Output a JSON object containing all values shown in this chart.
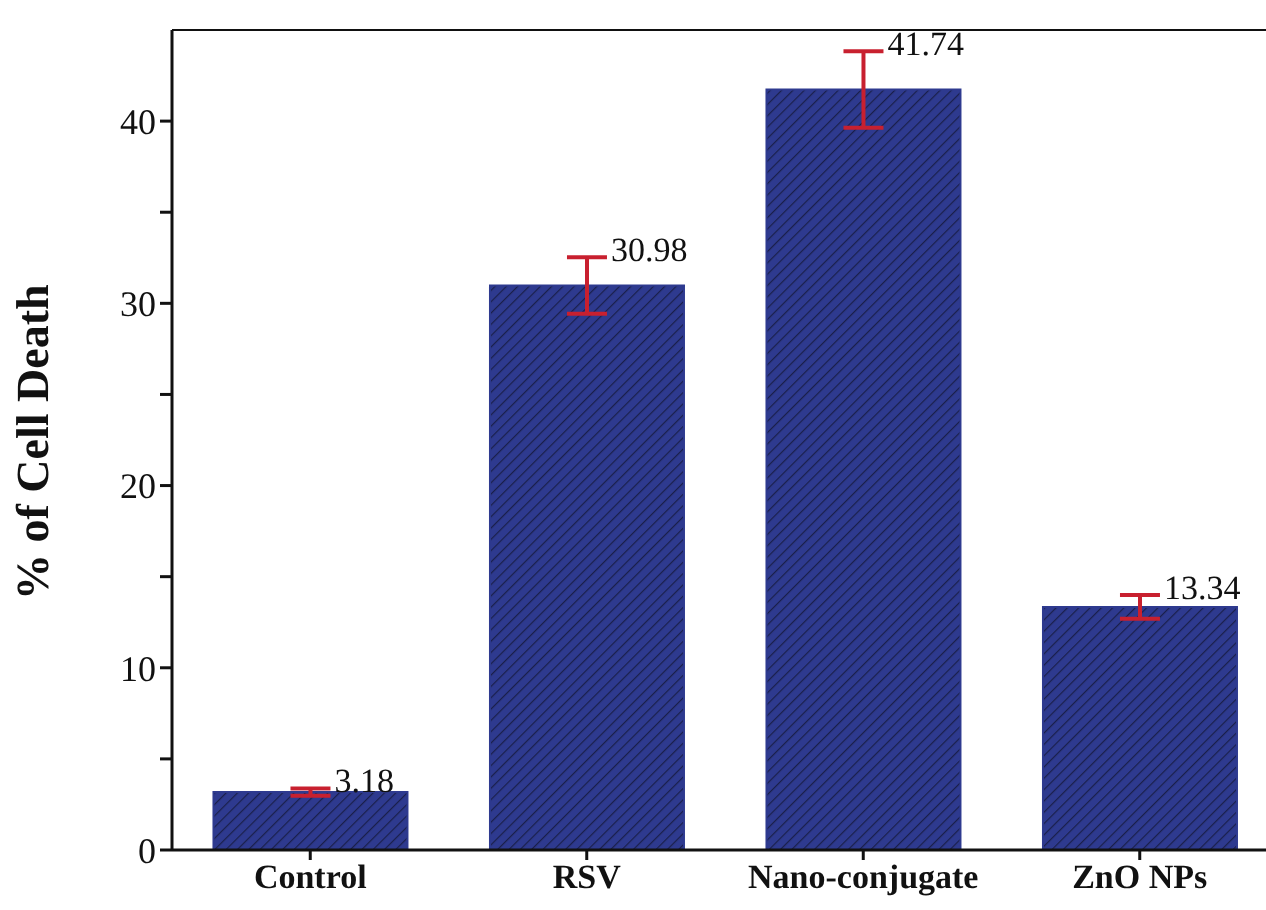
{
  "chart_data": {
    "type": "bar",
    "ylabel": "% of Cell Death",
    "categories": [
      "Control",
      "RSV",
      "Nano-conjugate",
      "ZnO NPs"
    ],
    "values": [
      3.18,
      30.98,
      41.74,
      13.34
    ],
    "errors": [
      0.2,
      1.55,
      2.1,
      0.65
    ],
    "color": "#2e3a8f",
    "data_labels": true,
    "ylim": [
      0,
      45
    ],
    "yticks": [
      0,
      {
        "value": 5,
        "label": null
      },
      10,
      {
        "value": 15,
        "label": null
      },
      20,
      {
        "value": 25,
        "label": null
      },
      30,
      {
        "value": 35,
        "label": null
      },
      40
    ],
    "grid": false
  }
}
